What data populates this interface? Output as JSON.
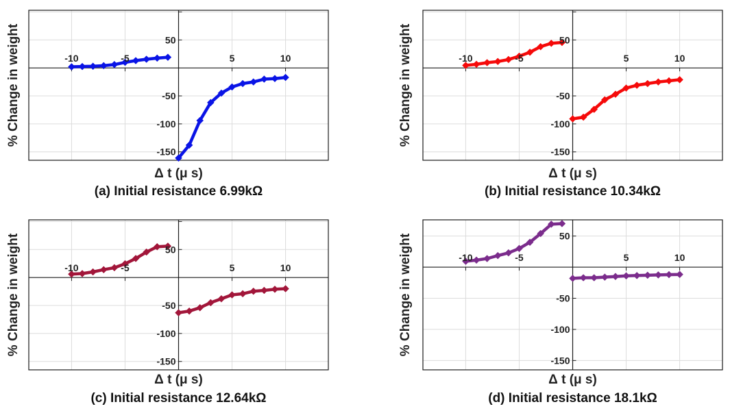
{
  "chart_data": [
    {
      "type": "line",
      "panel": "a",
      "title": "(a) Initial resistance 6.99kΩ",
      "xlabel": "Δ t (μ s)",
      "ylabel": "% Change in weight",
      "xlim": [
        -14,
        14
      ],
      "ylim": [
        -165,
        103
      ],
      "xticks": [
        -10,
        -5,
        5,
        10
      ],
      "xtick_labels": [
        "-10",
        "-5",
        "5",
        "10"
      ],
      "yticks": [
        -150,
        -100,
        -50,
        50
      ],
      "ytick_labels": [
        "-150",
        "-100",
        "-50",
        "50"
      ],
      "grid": true,
      "color": "#0a14e6",
      "series": [
        {
          "name": "negative Δt",
          "x": [
            -10,
            -9,
            -8,
            -7,
            -6,
            -5,
            -4,
            -3,
            -2,
            -1
          ],
          "y": [
            2,
            2.5,
            3,
            4,
            6,
            10,
            13,
            15.5,
            17.5,
            19
          ]
        },
        {
          "name": "positive Δt",
          "x": [
            0,
            1,
            2,
            3,
            4,
            5,
            6,
            7,
            8,
            9,
            10
          ],
          "y": [
            -161,
            -138,
            -94,
            -62,
            -45,
            -34,
            -28,
            -25,
            -20,
            -19,
            -17
          ]
        }
      ]
    },
    {
      "type": "line",
      "panel": "b",
      "title": "(b) Initial resistance 10.34kΩ",
      "xlabel": "Δ t (μ s)",
      "ylabel": "% Change in weight",
      "xlim": [
        -14,
        14
      ],
      "ylim": [
        -165,
        103
      ],
      "xticks": [
        -10,
        -5,
        5,
        10
      ],
      "xtick_labels": [
        "-10",
        "-5",
        "5",
        "10"
      ],
      "yticks": [
        -150,
        -100,
        -50,
        50
      ],
      "ytick_labels": [
        "-150",
        "-100",
        "-50",
        "50"
      ],
      "grid": true,
      "color": "#f50a0a",
      "series": [
        {
          "name": "negative Δt",
          "x": [
            -10,
            -9,
            -8,
            -7,
            -6,
            -5,
            -4,
            -3,
            -2,
            -1
          ],
          "y": [
            4.5,
            6.5,
            9.4,
            11.5,
            15,
            21,
            28,
            38,
            44,
            45.5
          ]
        },
        {
          "name": "positive Δt",
          "x": [
            0,
            1,
            2,
            3,
            4,
            5,
            6,
            7,
            8,
            9,
            10
          ],
          "y": [
            -91,
            -88,
            -74,
            -57,
            -47,
            -36,
            -31,
            -28,
            -25,
            -23,
            -21
          ]
        }
      ]
    },
    {
      "type": "line",
      "panel": "c",
      "title": "(c) Initial resistance 12.64kΩ",
      "xlabel": "Δ t (μ s)",
      "ylabel": "% Change in weight",
      "xlim": [
        -14,
        14
      ],
      "ylim": [
        -165,
        103
      ],
      "xticks": [
        -10,
        -5,
        5,
        10
      ],
      "xtick_labels": [
        "-10",
        "-5",
        "5",
        "10"
      ],
      "yticks": [
        -150,
        -100,
        -50,
        50
      ],
      "ytick_labels": [
        "-150",
        "-100",
        "-50",
        "50"
      ],
      "grid": true,
      "color": "#a2163a",
      "series": [
        {
          "name": "negative Δt",
          "x": [
            -10,
            -9,
            -8,
            -7,
            -6,
            -5,
            -4,
            -3,
            -2,
            -1
          ],
          "y": [
            6,
            7,
            10,
            14,
            17.5,
            24.5,
            34,
            45.5,
            55,
            56
          ]
        },
        {
          "name": "positive Δt",
          "x": [
            0,
            1,
            2,
            3,
            4,
            5,
            6,
            7,
            8,
            9,
            10
          ],
          "y": [
            -63,
            -60,
            -54,
            -45,
            -38,
            -31,
            -29,
            -24.5,
            -23,
            -21,
            -20
          ]
        }
      ]
    },
    {
      "type": "line",
      "panel": "d",
      "title": "(d) Initial resistance 18.1kΩ",
      "xlabel": "Δ t (μ s)",
      "ylabel": "% Change in weight",
      "xlim": [
        -14,
        14
      ],
      "ylim": [
        -165,
        76
      ],
      "xticks": [
        -10,
        -5,
        5,
        10
      ],
      "xtick_labels": [
        "-10",
        "-5",
        "5",
        "10"
      ],
      "yticks": [
        -150,
        -100,
        -50,
        50
      ],
      "ytick_labels": [
        "-150",
        "-100",
        "-50",
        "50"
      ],
      "grid": true,
      "color": "#7b2c8c",
      "series": [
        {
          "name": "negative Δt",
          "x": [
            -10,
            -9,
            -8,
            -7,
            -6,
            -5,
            -4,
            -3,
            -2,
            -1
          ],
          "y": [
            9.4,
            11.3,
            13.8,
            18.6,
            23,
            30,
            40,
            54,
            69,
            70
          ]
        },
        {
          "name": "positive Δt",
          "x": [
            0,
            1,
            2,
            3,
            4,
            5,
            6,
            7,
            8,
            9,
            10
          ],
          "y": [
            -18,
            -17,
            -17,
            -16,
            -15,
            -14,
            -13.5,
            -13,
            -12.5,
            -12,
            -11.7
          ]
        }
      ]
    }
  ]
}
